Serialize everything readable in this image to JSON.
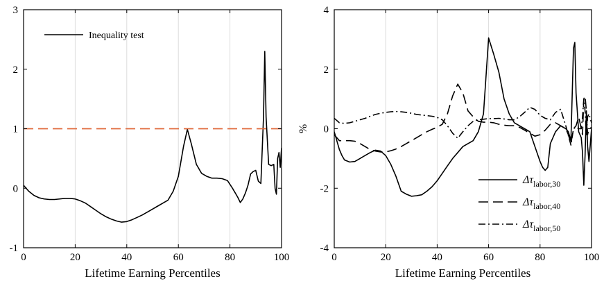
{
  "chart_data": [
    {
      "type": "line",
      "title": "",
      "xlabel": "Lifetime Earning Percentiles",
      "ylabel": "",
      "xlim": [
        0,
        100
      ],
      "ylim": [
        -1,
        3
      ],
      "xticks": [
        "0",
        "20",
        "40",
        "60",
        "80",
        "100"
      ],
      "yticks": [
        "-1",
        "0",
        "1",
        "2",
        "3"
      ],
      "grid": "vertical",
      "legend_position": "top-left",
      "series": [
        {
          "name": "Inequality test",
          "style": "solid",
          "color": "#000000",
          "x": [
            0,
            2,
            4,
            6,
            8,
            10,
            12,
            14,
            16,
            18,
            20,
            22,
            24,
            26,
            28,
            30,
            32,
            34,
            36,
            38,
            40,
            42,
            44,
            46,
            48,
            50,
            52,
            54,
            56,
            58,
            60,
            62,
            63.5,
            65,
            67,
            69,
            71,
            73,
            75,
            77,
            79,
            81,
            83,
            84,
            85,
            86,
            87,
            88,
            89,
            90,
            91,
            92,
            93,
            93.5,
            94,
            95,
            96,
            97,
            97.5,
            98,
            98.5,
            99,
            99.5,
            100
          ],
          "y": [
            0.05,
            -0.05,
            -0.12,
            -0.16,
            -0.18,
            -0.19,
            -0.19,
            -0.18,
            -0.17,
            -0.17,
            -0.18,
            -0.21,
            -0.25,
            -0.31,
            -0.37,
            -0.43,
            -0.48,
            -0.52,
            -0.55,
            -0.57,
            -0.56,
            -0.53,
            -0.49,
            -0.45,
            -0.4,
            -0.35,
            -0.3,
            -0.25,
            -0.2,
            -0.05,
            0.2,
            0.7,
            0.99,
            0.75,
            0.4,
            0.25,
            0.2,
            0.17,
            0.17,
            0.16,
            0.13,
            0.0,
            -0.15,
            -0.24,
            -0.18,
            -0.08,
            0.05,
            0.24,
            0.28,
            0.3,
            0.12,
            0.08,
            1.2,
            2.3,
            1.2,
            0.4,
            0.38,
            0.4,
            0.0,
            -0.1,
            0.5,
            0.6,
            0.35,
            0.68
          ]
        },
        {
          "name": "",
          "style": "dashed",
          "color": "#e06a3b",
          "x": [
            0,
            100
          ],
          "y": [
            1,
            1
          ]
        }
      ]
    },
    {
      "type": "line",
      "title": "",
      "xlabel": "Lifetime Earning Percentiles",
      "ylabel": "%",
      "xlim": [
        0,
        100
      ],
      "ylim": [
        -4,
        4
      ],
      "xticks": [
        "0",
        "20",
        "40",
        "60",
        "80",
        "100"
      ],
      "yticks": [
        "-4",
        "-2",
        "0",
        "2",
        "4"
      ],
      "grid": "vertical",
      "legend_position": "bottom-right",
      "series": [
        {
          "name": "Δτlabor,30",
          "legend_symbol": "Δτ",
          "legend_subscript": "labor,30",
          "style": "solid",
          "color": "#000000",
          "x": [
            0,
            1,
            2,
            3,
            4,
            6,
            8,
            10,
            12,
            14,
            16,
            18,
            20,
            22,
            24,
            26,
            28,
            30,
            32,
            34,
            36,
            38,
            40,
            42,
            44,
            46,
            48,
            50,
            52,
            54,
            56,
            58,
            60,
            62,
            64,
            66,
            68,
            70,
            72,
            74,
            76,
            78,
            80,
            81,
            82,
            83,
            84,
            86,
            88,
            90,
            91,
            92,
            93,
            93.5,
            94,
            95,
            96,
            96.5,
            97,
            97.5,
            98,
            98.5,
            99,
            100
          ],
          "y": [
            -0.1,
            -0.4,
            -0.7,
            -0.9,
            -1.05,
            -1.12,
            -1.1,
            -1.0,
            -0.9,
            -0.8,
            -0.72,
            -0.75,
            -0.9,
            -1.2,
            -1.6,
            -2.1,
            -2.2,
            -2.27,
            -2.25,
            -2.22,
            -2.1,
            -1.95,
            -1.75,
            -1.5,
            -1.25,
            -1.0,
            -0.8,
            -0.6,
            -0.5,
            -0.4,
            -0.1,
            0.5,
            3.05,
            2.5,
            1.9,
            1.0,
            0.5,
            0.2,
            0.1,
            0.0,
            -0.1,
            -0.6,
            -1.1,
            -1.3,
            -1.4,
            -1.3,
            -0.5,
            -0.1,
            0.1,
            0.0,
            -0.1,
            -0.4,
            2.7,
            2.9,
            1.2,
            -0.1,
            -0.3,
            -0.8,
            -1.9,
            -0.9,
            0.6,
            -0.6,
            -1.1,
            0.0
          ]
        },
        {
          "name": "Δτlabor,40",
          "legend_symbol": "Δτ",
          "legend_subscript": "labor,40",
          "style": "dashed",
          "color": "#000000",
          "x": [
            0,
            2,
            4,
            6,
            8,
            10,
            12,
            14,
            16,
            18,
            20,
            22,
            24,
            26,
            28,
            30,
            32,
            34,
            36,
            38,
            40,
            42,
            44,
            46,
            48,
            50,
            52,
            54,
            56,
            58,
            60,
            62,
            64,
            66,
            68,
            70,
            72,
            74,
            76,
            78,
            80,
            82,
            84,
            86,
            88,
            90,
            91,
            92,
            93,
            94,
            95,
            96,
            96.5,
            97,
            97.5,
            98,
            98.5,
            99,
            100
          ],
          "y": [
            -0.2,
            -0.4,
            -0.4,
            -0.4,
            -0.42,
            -0.5,
            -0.6,
            -0.7,
            -0.75,
            -0.78,
            -0.78,
            -0.74,
            -0.68,
            -0.6,
            -0.5,
            -0.4,
            -0.3,
            -0.2,
            -0.1,
            -0.02,
            0.05,
            0.15,
            0.5,
            1.1,
            1.5,
            1.2,
            0.6,
            0.4,
            0.25,
            0.22,
            0.22,
            0.2,
            0.15,
            0.12,
            0.1,
            0.1,
            0.05,
            -0.05,
            -0.15,
            -0.25,
            -0.2,
            -0.05,
            0.15,
            0.2,
            0.1,
            0.0,
            -0.2,
            -0.5,
            0.0,
            0.1,
            0.4,
            0.0,
            -0.2,
            1.0,
            1.1,
            0.6,
            -0.2,
            0.0,
            0.05
          ]
        },
        {
          "name": "Δτlabor,50",
          "legend_symbol": "Δτ",
          "legend_subscript": "labor,50",
          "style": "dashdot",
          "color": "#000000",
          "x": [
            0,
            2,
            4,
            6,
            8,
            10,
            12,
            14,
            16,
            18,
            20,
            22,
            24,
            26,
            28,
            30,
            32,
            34,
            36,
            38,
            40,
            42,
            44,
            46,
            48,
            50,
            52,
            54,
            56,
            58,
            60,
            62,
            64,
            66,
            68,
            70,
            72,
            74,
            76,
            78,
            80,
            82,
            84,
            86,
            88,
            90,
            92,
            93,
            94,
            95,
            96,
            96.5,
            97,
            97.5,
            98,
            98.5,
            99,
            100
          ],
          "y": [
            0.35,
            0.2,
            0.18,
            0.2,
            0.25,
            0.3,
            0.35,
            0.42,
            0.48,
            0.52,
            0.55,
            0.57,
            0.58,
            0.57,
            0.55,
            0.52,
            0.48,
            0.46,
            0.44,
            0.42,
            0.38,
            0.3,
            0.1,
            -0.15,
            -0.32,
            -0.1,
            0.1,
            0.25,
            0.3,
            0.32,
            0.34,
            0.34,
            0.35,
            0.33,
            0.3,
            0.3,
            0.4,
            0.55,
            0.72,
            0.65,
            0.45,
            0.35,
            0.3,
            0.55,
            0.65,
            0.1,
            -0.55,
            0.0,
            0.05,
            0.0,
            0.0,
            0.4,
            1.0,
            0.6,
            -0.2,
            0.4,
            0.5,
            0.2
          ]
        }
      ]
    }
  ]
}
